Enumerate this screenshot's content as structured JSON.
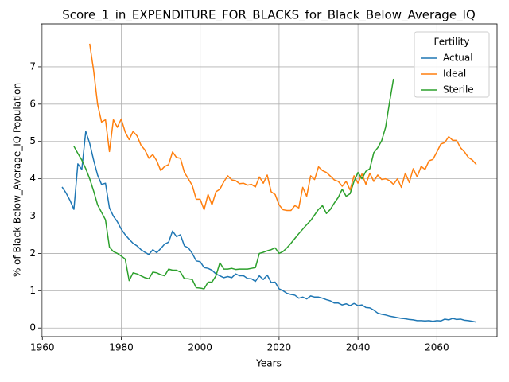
{
  "chart_data": {
    "type": "line",
    "title": "Score_1_in_EXPENDITURE_FOR_BLACKS_for_Black_Below_Average_IQ",
    "x_label": "Years",
    "y_label": "% of Black Below_Average_IQ Population",
    "legend_title": "Fertility",
    "legend": "upper right",
    "grid": true,
    "xlim": [
      1959.75,
      2075.25
    ],
    "ylim": [
      -0.23,
      8.15
    ],
    "xticks": [
      1960,
      1980,
      2000,
      2020,
      2040,
      2060
    ],
    "yticks": [
      0,
      1,
      2,
      3,
      4,
      5,
      6,
      7
    ],
    "series": [
      {
        "name": "Actual",
        "color": "#1f77b4",
        "x": [
          1965,
          1966,
          1967,
          1968,
          1969,
          1970,
          1971,
          1972,
          1973,
          1974,
          1975,
          1976,
          1977,
          1978,
          1979,
          1980,
          1981,
          1982,
          1983,
          1984,
          1985,
          1986,
          1987,
          1988,
          1989,
          1990,
          1991,
          1992,
          1993,
          1994,
          1995,
          1996,
          1997,
          1998,
          1999,
          2000,
          2001,
          2002,
          2003,
          2004,
          2005,
          2006,
          2007,
          2008,
          2009,
          2010,
          2011,
          2012,
          2013,
          2014,
          2015,
          2016,
          2017,
          2018,
          2019,
          2020,
          2021,
          2022,
          2023,
          2024,
          2025,
          2026,
          2027,
          2028,
          2029,
          2030,
          2031,
          2032,
          2033,
          2034,
          2035,
          2036,
          2037,
          2038,
          2039,
          2040,
          2041,
          2042,
          2043,
          2044,
          2045,
          2046,
          2047,
          2048,
          2049,
          2050,
          2051,
          2052,
          2053,
          2054,
          2055,
          2056,
          2057,
          2058,
          2059,
          2060,
          2061,
          2062,
          2063,
          2064,
          2065,
          2066,
          2067,
          2068,
          2069,
          2070
        ],
        "values": [
          3.78,
          3.62,
          3.42,
          3.18,
          4.4,
          4.25,
          5.27,
          4.95,
          4.5,
          4.1,
          3.85,
          3.88,
          3.22,
          3.0,
          2.85,
          2.65,
          2.5,
          2.38,
          2.27,
          2.2,
          2.1,
          2.03,
          1.97,
          2.1,
          2.02,
          2.13,
          2.25,
          2.3,
          2.6,
          2.45,
          2.5,
          2.2,
          2.15,
          2.0,
          1.8,
          1.78,
          1.62,
          1.6,
          1.55,
          1.45,
          1.4,
          1.35,
          1.38,
          1.35,
          1.45,
          1.4,
          1.4,
          1.33,
          1.32,
          1.25,
          1.4,
          1.3,
          1.42,
          1.22,
          1.23,
          1.05,
          1.0,
          0.93,
          0.9,
          0.88,
          0.8,
          0.83,
          0.78,
          0.86,
          0.83,
          0.83,
          0.8,
          0.76,
          0.73,
          0.67,
          0.67,
          0.62,
          0.65,
          0.6,
          0.66,
          0.6,
          0.62,
          0.55,
          0.54,
          0.48,
          0.4,
          0.37,
          0.35,
          0.32,
          0.3,
          0.28,
          0.26,
          0.25,
          0.23,
          0.22,
          0.2,
          0.2,
          0.19,
          0.2,
          0.18,
          0.2,
          0.19,
          0.24,
          0.22,
          0.26,
          0.23,
          0.24,
          0.21,
          0.2,
          0.18,
          0.16
        ]
      },
      {
        "name": "Ideal",
        "color": "#ff7f0e",
        "x": [
          1972,
          1973,
          1974,
          1975,
          1976,
          1977,
          1978,
          1979,
          1980,
          1981,
          1982,
          1983,
          1984,
          1985,
          1986,
          1987,
          1988,
          1989,
          1990,
          1991,
          1992,
          1993,
          1994,
          1995,
          1996,
          1997,
          1998,
          1999,
          2000,
          2001,
          2002,
          2003,
          2004,
          2005,
          2006,
          2007,
          2008,
          2009,
          2010,
          2011,
          2012,
          2013,
          2014,
          2015,
          2016,
          2017,
          2018,
          2019,
          2020,
          2021,
          2022,
          2023,
          2024,
          2025,
          2026,
          2027,
          2028,
          2029,
          2030,
          2031,
          2032,
          2033,
          2034,
          2035,
          2036,
          2037,
          2038,
          2039,
          2040,
          2041,
          2042,
          2043,
          2044,
          2045,
          2046,
          2047,
          2048,
          2049,
          2050,
          2051,
          2052,
          2053,
          2054,
          2055,
          2056,
          2057,
          2058,
          2059,
          2060,
          2061,
          2062,
          2063,
          2064,
          2065,
          2066,
          2067,
          2068,
          2069,
          2070
        ],
        "values": [
          7.62,
          6.9,
          6.0,
          5.52,
          5.58,
          4.73,
          5.58,
          5.38,
          5.6,
          5.25,
          5.05,
          5.27,
          5.15,
          4.9,
          4.77,
          4.55,
          4.65,
          4.48,
          4.22,
          4.33,
          4.38,
          4.72,
          4.57,
          4.55,
          4.17,
          4.0,
          3.82,
          3.45,
          3.45,
          3.17,
          3.58,
          3.3,
          3.65,
          3.72,
          3.92,
          4.08,
          3.97,
          3.95,
          3.87,
          3.88,
          3.83,
          3.85,
          3.78,
          4.05,
          3.88,
          4.1,
          3.65,
          3.58,
          3.3,
          3.17,
          3.15,
          3.15,
          3.28,
          3.22,
          3.77,
          3.53,
          4.08,
          3.98,
          4.32,
          4.22,
          4.17,
          4.07,
          3.97,
          3.93,
          3.8,
          3.93,
          3.7,
          4.08,
          3.88,
          4.13,
          3.85,
          4.15,
          3.93,
          4.1,
          3.98,
          4.0,
          3.95,
          3.85,
          4.0,
          3.77,
          4.15,
          3.9,
          4.27,
          4.05,
          4.33,
          4.25,
          4.48,
          4.52,
          4.72,
          4.93,
          4.97,
          5.13,
          5.03,
          5.03,
          4.83,
          4.72,
          4.57,
          4.5,
          4.38
        ]
      },
      {
        "name": "Sterile",
        "color": "#2ca02c",
        "x": [
          1968,
          1969,
          1970,
          1971,
          1972,
          1973,
          1974,
          1975,
          1976,
          1977,
          1978,
          1979,
          1980,
          1981,
          1982,
          1983,
          1984,
          1985,
          1986,
          1987,
          1988,
          1989,
          1990,
          1991,
          1992,
          1993,
          1994,
          1995,
          1996,
          1997,
          1998,
          1999,
          2000,
          2001,
          2002,
          2003,
          2004,
          2005,
          2006,
          2007,
          2008,
          2009,
          2010,
          2011,
          2012,
          2013,
          2014,
          2015,
          2016,
          2017,
          2018,
          2019,
          2020,
          2021,
          2022,
          2023,
          2024,
          2025,
          2026,
          2027,
          2028,
          2029,
          2030,
          2031,
          2032,
          2033,
          2034,
          2035,
          2036,
          2037,
          2038,
          2039,
          2040,
          2041,
          2042,
          2043,
          2044,
          2045,
          2046,
          2047,
          2048,
          2049
        ],
        "values": [
          4.87,
          4.68,
          4.5,
          4.27,
          4.0,
          3.67,
          3.3,
          3.1,
          2.9,
          2.17,
          2.05,
          2.0,
          1.93,
          1.85,
          1.27,
          1.48,
          1.45,
          1.4,
          1.35,
          1.32,
          1.5,
          1.48,
          1.43,
          1.4,
          1.58,
          1.55,
          1.55,
          1.5,
          1.32,
          1.32,
          1.3,
          1.08,
          1.07,
          1.05,
          1.23,
          1.23,
          1.4,
          1.75,
          1.58,
          1.58,
          1.6,
          1.57,
          1.58,
          1.58,
          1.58,
          1.6,
          1.62,
          2.0,
          2.03,
          2.07,
          2.1,
          2.15,
          2.0,
          2.05,
          2.15,
          2.27,
          2.4,
          2.53,
          2.65,
          2.77,
          2.88,
          3.03,
          3.18,
          3.28,
          3.07,
          3.18,
          3.35,
          3.5,
          3.72,
          3.53,
          3.6,
          3.93,
          4.17,
          4.0,
          4.2,
          4.27,
          4.7,
          4.83,
          5.02,
          5.38,
          6.05,
          6.68
        ]
      }
    ]
  }
}
